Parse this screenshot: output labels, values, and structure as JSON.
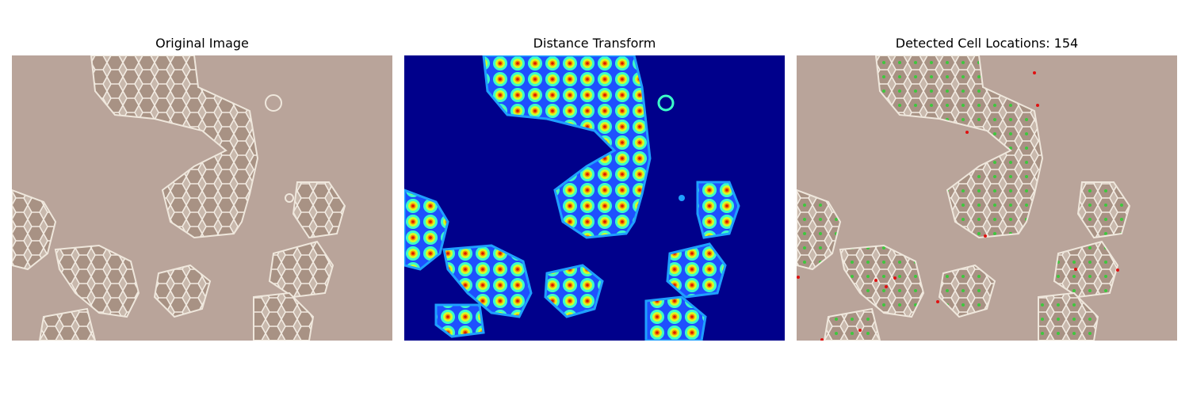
{
  "panels": [
    {
      "title": "Original Image",
      "image_kind": "phase-contrast-micrograph"
    },
    {
      "title": "Distance Transform",
      "image_kind": "distance-transform-heatmap",
      "colormap": "jet"
    },
    {
      "title": "Detected Cell Locations: 154",
      "image_kind": "micrograph-with-markers"
    }
  ],
  "colors": {
    "background_tan": "#b9a49a",
    "cell_edge": "#efe7dc",
    "jet_background": "#00008b",
    "marker_green": "#3cc83c",
    "marker_red": "#e01010"
  }
}
